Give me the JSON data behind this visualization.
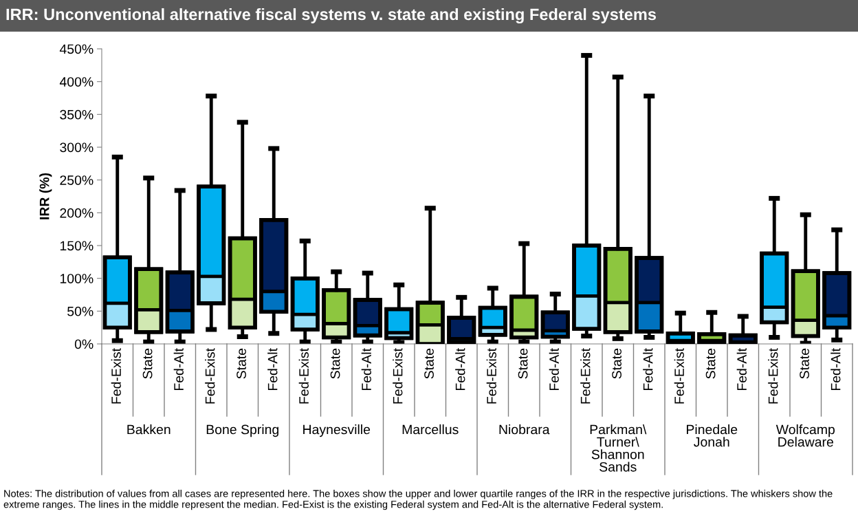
{
  "chart_data": {
    "type": "box",
    "title": "IRR: Unconventional alternative fiscal systems v. state and existing Federal systems",
    "ylabel": "IRR (%)",
    "categories": [
      "Bakken",
      "Bone Spring",
      "Haynesville",
      "Marcellus",
      "Niobrara",
      "Parkman\\\nTurner\\\nShannon\nSands",
      "Pinedale\nJonah",
      "Wolfcamp\nDelaware"
    ],
    "ylim": [
      0,
      450
    ],
    "yticks": [
      {
        "value": 0,
        "label": "0%"
      },
      {
        "value": 50,
        "label": "50%"
      },
      {
        "value": 100,
        "label": "100%"
      },
      {
        "value": 150,
        "label": "150%"
      },
      {
        "value": 200,
        "label": "200%"
      },
      {
        "value": 250,
        "label": "250%"
      },
      {
        "value": 300,
        "label": "300%"
      },
      {
        "value": 350,
        "label": "350%"
      },
      {
        "value": 400,
        "label": "400%"
      },
      {
        "value": 450,
        "label": "450%"
      }
    ],
    "grid": false,
    "legend": false,
    "series": [
      {
        "name": "Fed-Exist",
        "color": "#00b0f0",
        "boxes": [
          {
            "low": 5,
            "q1": 25,
            "median": 62,
            "q3": 132,
            "high": 285
          },
          {
            "low": 22,
            "q1": 62,
            "median": 103,
            "q3": 240,
            "high": 378
          },
          {
            "low": 3,
            "q1": 22,
            "median": 45,
            "q3": 100,
            "high": 157
          },
          {
            "low": 2,
            "q1": 9,
            "median": 17,
            "q3": 53,
            "high": 90
          },
          {
            "low": 3,
            "q1": 14,
            "median": 25,
            "q3": 55,
            "high": 85
          },
          {
            "low": 12,
            "q1": 23,
            "median": 73,
            "q3": 150,
            "high": 440
          },
          {
            "low": 0,
            "q1": 1,
            "median": 5,
            "q3": 16,
            "high": 47
          },
          {
            "low": 10,
            "q1": 33,
            "median": 56,
            "q3": 138,
            "high": 222
          }
        ]
      },
      {
        "name": "State",
        "color": "#8dc63f",
        "boxes": [
          {
            "low": 3,
            "q1": 18,
            "median": 52,
            "q3": 114,
            "high": 253
          },
          {
            "low": 11,
            "q1": 25,
            "median": 68,
            "q3": 161,
            "high": 338
          },
          {
            "low": 3,
            "q1": 10,
            "median": 31,
            "q3": 82,
            "high": 110
          },
          {
            "low": 0,
            "q1": 0,
            "median": 29,
            "q3": 63,
            "high": 207
          },
          {
            "low": 3,
            "q1": 10,
            "median": 21,
            "q3": 72,
            "high": 153
          },
          {
            "low": 8,
            "q1": 18,
            "median": 63,
            "q3": 145,
            "high": 407
          },
          {
            "low": 0,
            "q1": 1,
            "median": 5,
            "q3": 15,
            "high": 48
          },
          {
            "low": 1,
            "q1": 12,
            "median": 36,
            "q3": 111,
            "high": 197
          }
        ]
      },
      {
        "name": "Fed-Alt",
        "color": "#001f5b",
        "boxes": [
          {
            "low": 3,
            "q1": 19,
            "median": 51,
            "q3": 109,
            "high": 234
          },
          {
            "low": 16,
            "q1": 49,
            "median": 80,
            "q3": 189,
            "high": 298
          },
          {
            "low": 3,
            "q1": 13,
            "median": 28,
            "q3": 67,
            "high": 108
          },
          {
            "low": 1,
            "q1": 3,
            "median": 8,
            "q3": 40,
            "high": 71
          },
          {
            "low": 3,
            "q1": 11,
            "median": 20,
            "q3": 48,
            "high": 76
          },
          {
            "low": 10,
            "q1": 19,
            "median": 63,
            "q3": 131,
            "high": 378
          },
          {
            "low": 0,
            "q1": 1,
            "median": 3,
            "q3": 13,
            "high": 42
          },
          {
            "low": 6,
            "q1": 25,
            "median": 43,
            "q3": 108,
            "high": 174
          }
        ]
      }
    ],
    "annotations": [
      "Notes: The distribution of values from all cases are represented here. The boxes show the upper and lower quartile ranges of the IRR in the respective jurisdictions. The whiskers show the extreme ranges. The lines in the middle represent the median. Fed-Exist is the existing Federal system and Fed-Alt is the alternative Federal system."
    ]
  }
}
